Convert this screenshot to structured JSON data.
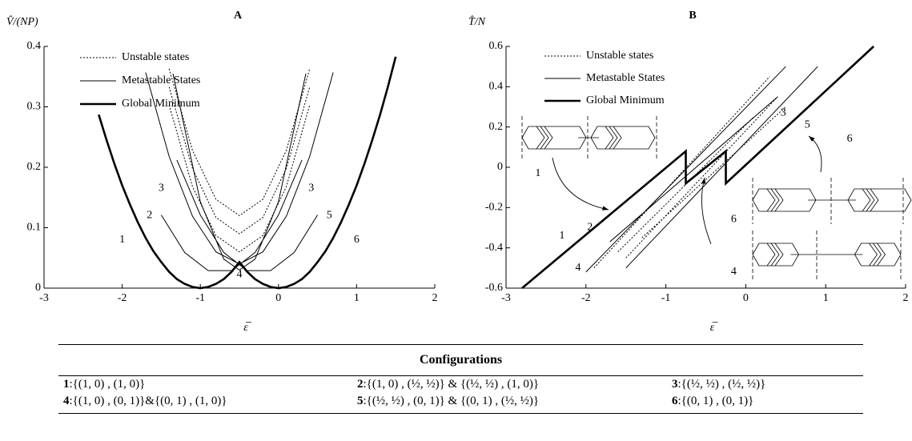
{
  "chart_data": [
    {
      "type": "line",
      "title": "A",
      "ylabel": "V̂/(NP)",
      "xlabel": "ε̅",
      "xlim": [
        -3,
        2
      ],
      "ylim": [
        0,
        0.4
      ],
      "xticks": [
        -3,
        -2,
        -1,
        0,
        1,
        2
      ],
      "yticks": [
        0,
        0.1,
        0.2,
        0.3,
        0.4
      ],
      "legend": "upper left",
      "series": [
        {
          "name": "Unstable states",
          "color": "#000",
          "dashed": true,
          "line_width": 1,
          "x": [
            -1.4,
            -1.1,
            -0.8,
            -0.5,
            -0.2,
            0.1,
            0.4,
            null,
            -1.4,
            -1.1,
            -0.8,
            -0.5,
            -0.2,
            0.1,
            0.4,
            null,
            -1.4,
            -1.1,
            -0.8,
            -0.5,
            -0.2,
            0.1,
            0.4
          ],
          "values": [
            0.303,
            0.168,
            0.087,
            0.06,
            0.087,
            0.168,
            0.303,
            null,
            0.333,
            0.198,
            0.117,
            0.09,
            0.117,
            0.198,
            0.333,
            null,
            0.363,
            0.228,
            0.147,
            0.12,
            0.147,
            0.228,
            0.363
          ]
        },
        {
          "name": "Metastable States",
          "color": "#000",
          "dashed": false,
          "line_width": 1,
          "x": [
            -1.5,
            -1.2,
            -0.9,
            -0.6,
            -0.3,
            0,
            0.3,
            null,
            -1.3,
            -1.0,
            -0.7,
            -0.4,
            -0.1,
            0.2,
            0.5,
            null,
            -1.7,
            -1.4,
            -1.1,
            -0.8,
            -0.5,
            -0.2,
            0.1,
            0.4,
            0.7,
            null,
            -1.35,
            -1.0,
            -0.7,
            -0.5,
            -0.3,
            0,
            0.35
          ],
          "values": [
            0.121,
            0.059,
            0.029,
            0.029,
            0.059,
            0.121,
            0.212,
            null,
            0.212,
            0.121,
            0.059,
            0.029,
            0.029,
            0.059,
            0.121,
            null,
            0.357,
            0.218,
            0.119,
            0.06,
            0.04,
            0.06,
            0.119,
            0.218,
            0.357,
            null,
            0.355,
            0.143,
            0.048,
            0.03,
            0.048,
            0.143,
            0.355
          ]
        },
        {
          "name": "Global Minimum",
          "color": "#000",
          "dashed": false,
          "line_width": 2.6,
          "x": [
            -2.3,
            -2.2,
            -2.1,
            -2.0,
            -1.9,
            -1.8,
            -1.7,
            -1.6,
            -1.5,
            -1.4,
            -1.3,
            -1.2,
            -1.1,
            -1.0,
            -0.9,
            -0.8,
            -0.7,
            -0.6,
            -0.5,
            -0.4,
            -0.3,
            -0.2,
            -0.1,
            0,
            0.1,
            0.2,
            0.3,
            0.4,
            0.5,
            0.6,
            0.7,
            0.8,
            0.9,
            1.0,
            1.1,
            1.2,
            1.3,
            1.4,
            1.5
          ],
          "values": [
            0.287,
            0.245,
            0.206,
            0.17,
            0.138,
            0.109,
            0.083,
            0.061,
            0.043,
            0.027,
            0.015,
            0.007,
            0.002,
            0,
            0.002,
            0.007,
            0.015,
            0.027,
            0.043,
            0.027,
            0.015,
            0.007,
            0.002,
            0,
            0.002,
            0.007,
            0.015,
            0.027,
            0.043,
            0.061,
            0.083,
            0.109,
            0.138,
            0.17,
            0.206,
            0.245,
            0.287,
            0.333,
            0.383
          ]
        }
      ],
      "annotations": [
        "1",
        "2",
        "3",
        "3",
        "4",
        "5",
        "6"
      ]
    },
    {
      "type": "line",
      "title": "B",
      "ylabel": "T̂/N",
      "xlabel": "ε̅",
      "xlim": [
        -3,
        2
      ],
      "ylim": [
        -0.6,
        0.6
      ],
      "xticks": [
        -3,
        -2,
        -1,
        0,
        1,
        2
      ],
      "yticks": [
        -0.6,
        -0.4,
        -0.2,
        0,
        0.2,
        0.4,
        0.6
      ],
      "legend": "upper left",
      "series": [
        {
          "name": "Unstable states",
          "color": "#000",
          "dashed": true,
          "line_width": 1,
          "x": [
            -1.9,
            0.3,
            null,
            -1.5,
            0.4,
            null,
            -1.3,
            0.5,
            null,
            -1.6,
            0.1
          ],
          "values": [
            -0.5,
            0.45,
            null,
            -0.45,
            0.35,
            null,
            -0.35,
            0.3,
            null,
            -0.42,
            0.25
          ]
        },
        {
          "name": "Metastable States",
          "color": "#000",
          "dashed": false,
          "line_width": 1,
          "x": [
            -2.0,
            0.5,
            null,
            -1.5,
            0.9,
            null,
            -1.7,
            0.4
          ],
          "values": [
            -0.52,
            0.5,
            null,
            -0.5,
            0.5,
            null,
            -0.37,
            0.35
          ]
        },
        {
          "name": "Global Minimum",
          "color": "#000",
          "dashed": false,
          "line_width": 2.6,
          "x": [
            -2.8,
            -0.75,
            -0.75,
            -0.25,
            -0.25,
            1.6
          ],
          "values": [
            -0.6,
            0.08,
            -0.08,
            0.08,
            -0.08,
            0.6
          ]
        }
      ],
      "annotations": [
        "3",
        "5",
        "6",
        "1",
        "2",
        "4",
        "1",
        "6",
        "4"
      ]
    }
  ],
  "table": {
    "header": "Configurations",
    "rows": [
      [
        {
          "num": "1",
          "text": ":{(1, 0) , (1, 0)}"
        },
        {
          "num": "2",
          "text": ":{(1, 0) , (½, ½)} & {(½, ½) , (1, 0)}"
        },
        {
          "num": "3",
          "text": ":{(½, ½) , (½, ½)}"
        }
      ],
      [
        {
          "num": "4",
          "text": ":{(1, 0) , (0, 1)}&{(0, 1) , (1, 0)}"
        },
        {
          "num": "5",
          "text": ":{(½, ½) , (0, 1)} & {(0, 1) , (½, ½)}"
        },
        {
          "num": "6",
          "text": ":{(0, 1) , (0, 1)}"
        }
      ]
    ]
  }
}
